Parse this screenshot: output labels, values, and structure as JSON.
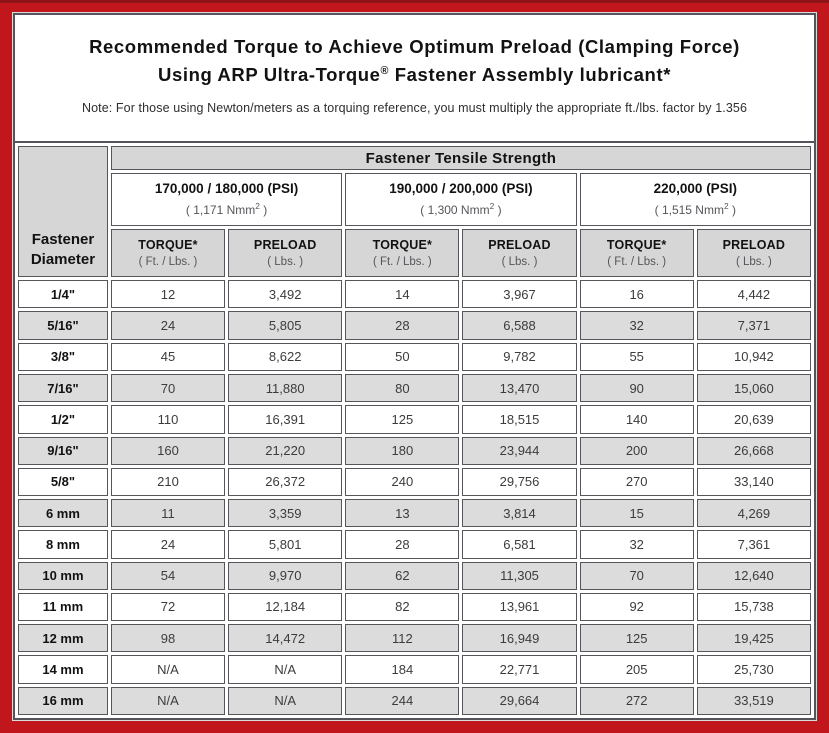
{
  "page": {
    "title_line1": "Recommended Torque to Achieve Optimum Preload (Clamping Force)",
    "title_line2_pre": "Using ARP Ultra-Torque",
    "title_line2_reg": "®",
    "title_line2_post": " Fastener Assembly lubricant*",
    "note": "Note: For those using Newton/meters as a torquing reference, you must multiply the appropriate ft./lbs. factor by 1.356"
  },
  "table": {
    "tensile_header": "Fastener Tensile Strength",
    "diameter_header": {
      "line1": "Fastener",
      "line2": "Diameter"
    },
    "groups": [
      {
        "psi": "170,000 / 180,000 (PSI)",
        "nmm_pre": "( 1,171 Nmm",
        "nmm_sup": "2",
        "nmm_post": " )"
      },
      {
        "psi": "190,000 / 200,000 (PSI)",
        "nmm_pre": "( 1,300 Nmm",
        "nmm_sup": "2",
        "nmm_post": " )"
      },
      {
        "psi": "220,000 (PSI)",
        "nmm_pre": "( 1,515 Nmm",
        "nmm_sup": "2",
        "nmm_post": " )"
      }
    ],
    "col_headers": {
      "torque_label": "TORQUE*",
      "torque_unit": "( Ft. / Lbs. )",
      "preload_label": "PRELOAD",
      "preload_unit": "( Lbs. )"
    },
    "rows": [
      {
        "diameter": "1/4\"",
        "values": [
          "12",
          "3,492",
          "14",
          "3,967",
          "16",
          "4,442"
        ]
      },
      {
        "diameter": "5/16\"",
        "values": [
          "24",
          "5,805",
          "28",
          "6,588",
          "32",
          "7,371"
        ]
      },
      {
        "diameter": "3/8\"",
        "values": [
          "45",
          "8,622",
          "50",
          "9,782",
          "55",
          "10,942"
        ]
      },
      {
        "diameter": "7/16\"",
        "values": [
          "70",
          "11,880",
          "80",
          "13,470",
          "90",
          "15,060"
        ]
      },
      {
        "diameter": "1/2\"",
        "values": [
          "110",
          "16,391",
          "125",
          "18,515",
          "140",
          "20,639"
        ]
      },
      {
        "diameter": "9/16\"",
        "values": [
          "160",
          "21,220",
          "180",
          "23,944",
          "200",
          "26,668"
        ]
      },
      {
        "diameter": "5/8\"",
        "values": [
          "210",
          "26,372",
          "240",
          "29,756",
          "270",
          "33,140"
        ]
      },
      {
        "diameter": "6 mm",
        "values": [
          "11",
          "3,359",
          "13",
          "3,814",
          "15",
          "4,269"
        ]
      },
      {
        "diameter": "8 mm",
        "values": [
          "24",
          "5,801",
          "28",
          "6,581",
          "32",
          "7,361"
        ]
      },
      {
        "diameter": "10 mm",
        "values": [
          "54",
          "9,970",
          "62",
          "11,305",
          "70",
          "12,640"
        ]
      },
      {
        "diameter": "11 mm",
        "values": [
          "72",
          "12,184",
          "82",
          "13,961",
          "92",
          "15,738"
        ]
      },
      {
        "diameter": "12 mm",
        "values": [
          "98",
          "14,472",
          "112",
          "16,949",
          "125",
          "19,425"
        ]
      },
      {
        "diameter": "14 mm",
        "values": [
          "N/A",
          "N/A",
          "184",
          "22,771",
          "205",
          "25,730"
        ]
      },
      {
        "diameter": "16 mm",
        "values": [
          "N/A",
          "N/A",
          "244",
          "29,664",
          "272",
          "33,519"
        ]
      }
    ]
  },
  "colors": {
    "frame_red": "#c2161d",
    "frame_top_dark": "#8f1216",
    "border_dark": "#54545a",
    "header_gray": "#d6d6d6",
    "stripe_gray": "#dcdcdc"
  }
}
